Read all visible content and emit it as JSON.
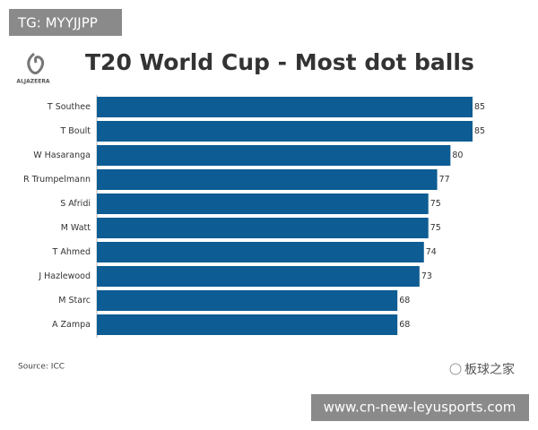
{
  "chart_data": {
    "type": "bar",
    "orientation": "horizontal",
    "title": "T20 World Cup - Most dot balls",
    "categories": [
      "T Southee",
      "T Boult",
      "W Hasaranga",
      "R Trumpelmann",
      "S Afridi",
      "M Watt",
      "T Ahmed",
      "J Hazlewood",
      "M Starc",
      "A Zampa"
    ],
    "values": [
      85,
      85,
      80,
      77,
      75,
      75,
      74,
      73,
      68,
      68
    ],
    "color": "#0d5c93",
    "source": "Source: ICC"
  },
  "logo": "ALJAZEERA",
  "tag": "TG: MYYJJPP",
  "wechat": "板球之家",
  "url": "www.cn-new-leyusports.com"
}
